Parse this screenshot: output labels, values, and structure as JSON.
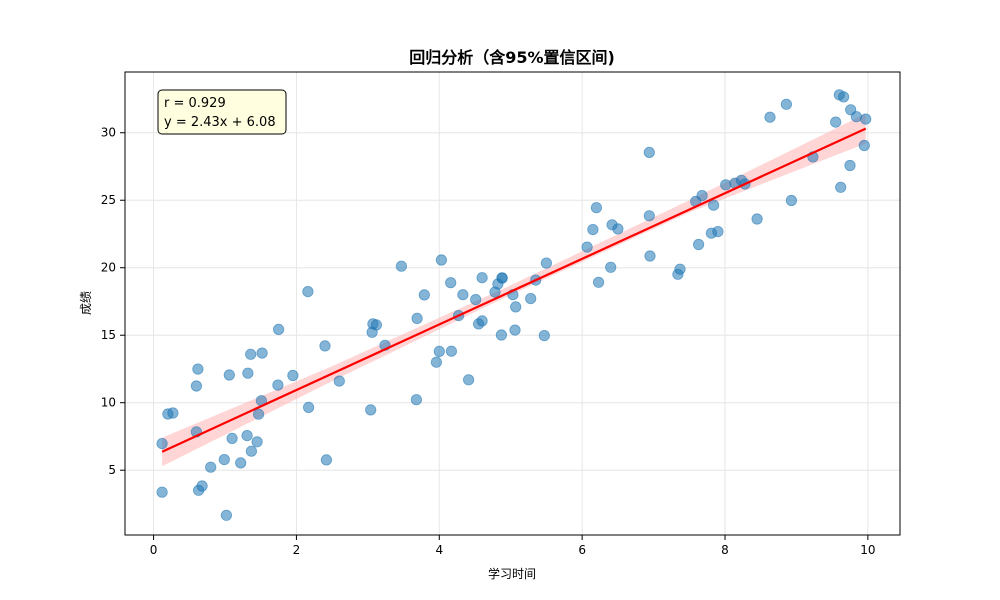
{
  "chart_data": {
    "type": "scatter",
    "title": "回归分析（含95%置信区间)",
    "xlabel": "学习时间",
    "ylabel": "成绩",
    "xlim": [
      -0.4,
      10.45
    ],
    "ylim": [
      0.2,
      34.5
    ],
    "xticks": [
      0,
      2,
      4,
      6,
      8,
      10
    ],
    "yticks": [
      5,
      10,
      15,
      20,
      25,
      30
    ],
    "grid": true,
    "annotation": {
      "lines": [
        "r = 0.929",
        "y = 2.43x + 6.08"
      ],
      "placement": "top-left"
    },
    "regression": {
      "slope": 2.43,
      "intercept": 6.08,
      "x_range": [
        0.12,
        9.97
      ]
    },
    "confidence_band": {
      "x": [
        0.12,
        2.5,
        5.0,
        7.5,
        9.97
      ],
      "lower": [
        5.3,
        11.6,
        18.0,
        24.1,
        29.2
      ],
      "upper": [
        7.4,
        12.7,
        18.7,
        25.0,
        31.4
      ]
    },
    "colors": {
      "points": "#1f77b4",
      "line": "#ff0000",
      "band": "#ffb3b3",
      "grid": "#e6e6e6",
      "box": "#ffffe0"
    },
    "points": {
      "x": [
        0.12,
        0.12,
        0.2,
        0.27,
        0.6,
        0.6,
        0.62,
        0.63,
        0.68,
        0.8,
        0.99,
        1.02,
        1.06,
        1.1,
        1.22,
        1.31,
        1.32,
        1.36,
        1.37,
        1.45,
        1.47,
        1.51,
        1.52,
        1.74,
        1.75,
        1.95,
        2.16,
        2.17,
        2.4,
        2.42,
        2.6,
        3.04,
        3.06,
        3.07,
        3.12,
        3.24,
        3.47,
        3.68,
        3.69,
        3.79,
        3.96,
        4.0,
        4.03,
        4.16,
        4.17,
        4.27,
        4.33,
        4.41,
        4.51,
        4.55,
        4.6,
        4.6,
        4.78,
        4.82,
        4.87,
        4.88,
        4.88,
        5.03,
        5.06,
        5.07,
        5.28,
        5.35,
        5.47,
        5.5,
        6.07,
        6.15,
        6.2,
        6.23,
        6.4,
        6.42,
        6.5,
        6.94,
        6.94,
        6.95,
        7.34,
        7.37,
        7.59,
        7.63,
        7.68,
        7.81,
        7.84,
        7.9,
        8.01,
        8.14,
        8.23,
        8.28,
        8.45,
        8.63,
        8.86,
        8.93,
        9.23,
        9.55,
        9.6,
        9.62,
        9.66,
        9.75,
        9.76,
        9.84,
        9.95,
        9.97
      ]
    }
  }
}
